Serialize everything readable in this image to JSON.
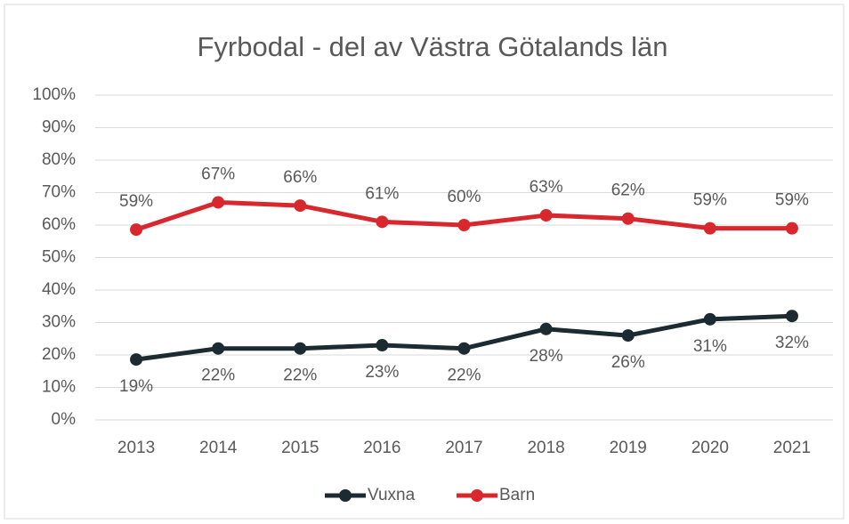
{
  "chart_data": {
    "type": "line",
    "title": "Fyrbodal - del av Västra Götalands län",
    "categories": [
      "2013",
      "2014",
      "2015",
      "2016",
      "2017",
      "2018",
      "2019",
      "2020",
      "2021"
    ],
    "series": [
      {
        "name": "Vuxna",
        "color": "#1c2a31",
        "values": [
          18.6,
          22,
          22,
          23,
          22,
          28,
          26,
          31,
          32
        ],
        "value_labels": [
          "19%",
          "22%",
          "22%",
          "23%",
          "22%",
          "28%",
          "26%",
          "31%",
          "32%"
        ]
      },
      {
        "name": "Barn",
        "color": "#d9272e",
        "values": [
          58.6,
          67,
          66,
          61,
          60,
          63,
          62,
          59,
          59
        ],
        "value_labels": [
          "59%",
          "67%",
          "66%",
          "61%",
          "60%",
          "63%",
          "62%",
          "59%",
          "59%"
        ]
      }
    ],
    "ylim": [
      0,
      100
    ],
    "yticks": [
      {
        "value": 0,
        "label": "0%"
      },
      {
        "value": 10,
        "label": "10%"
      },
      {
        "value": 20,
        "label": "20%"
      },
      {
        "value": 30,
        "label": "30%"
      },
      {
        "value": 40,
        "label": "40%"
      },
      {
        "value": 50,
        "label": "50%"
      },
      {
        "value": 60,
        "label": "60%"
      },
      {
        "value": 70,
        "label": "70%"
      },
      {
        "value": 80,
        "label": "80%"
      },
      {
        "value": 90,
        "label": "90%"
      },
      {
        "value": 100,
        "label": "100%"
      }
    ],
    "grid": true,
    "legend": "bottom"
  }
}
